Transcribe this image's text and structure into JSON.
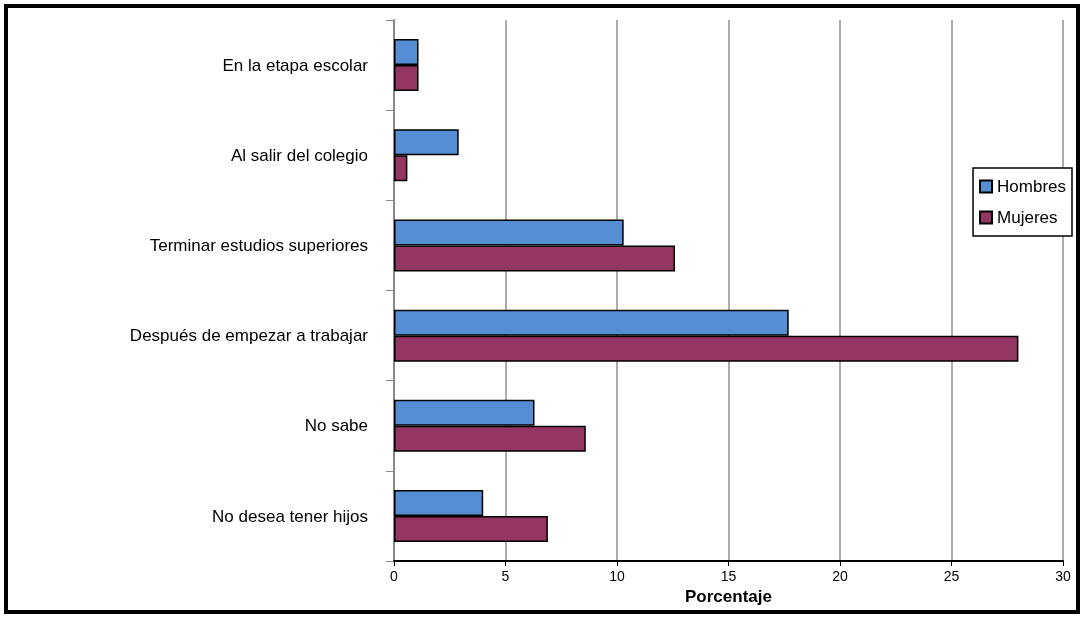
{
  "chart_data": {
    "type": "bar",
    "orientation": "horizontal",
    "xlabel": "Porcentaje",
    "categories": [
      "En la etapa escolar",
      "Al salir del colegio",
      "Terminar estudios superiores",
      "Después de empezar a trabajar",
      "No sabe",
      "No desea tener hijos"
    ],
    "series": [
      {
        "name": "Hombres",
        "color": "#558ed5",
        "values": [
          1.1,
          2.9,
          10.3,
          17.7,
          6.3,
          4.0
        ]
      },
      {
        "name": "Mujeres",
        "color": "#953562",
        "values": [
          1.1,
          0.6,
          12.6,
          28.0,
          8.6,
          6.9
        ]
      }
    ],
    "xlim": [
      0,
      30
    ],
    "xticks": [
      0,
      5,
      10,
      15,
      20,
      25,
      30
    ],
    "grid": "x",
    "legend": "right"
  }
}
